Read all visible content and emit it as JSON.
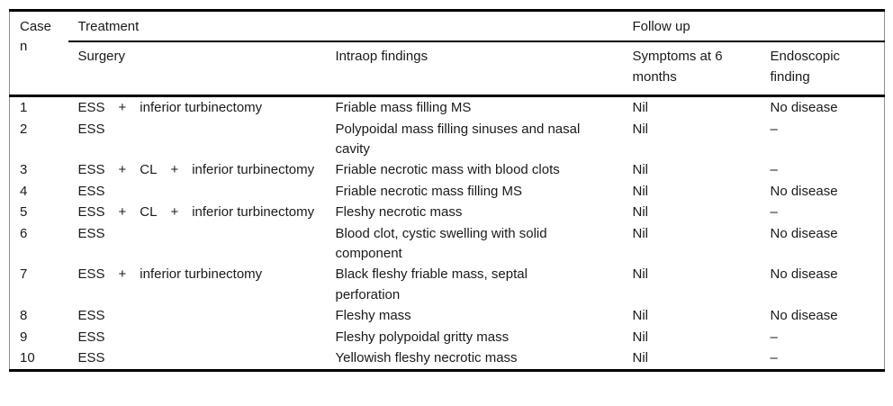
{
  "table": {
    "header": {
      "case_label": "Case n",
      "treatment_label": "Treatment",
      "followup_label": "Follow up",
      "surgery_label": "Surgery",
      "intraop_label": "Intraop findings",
      "symptoms_label": "Symptoms at 6 months",
      "endoscopic_label": "Endoscopic finding"
    },
    "rows": [
      {
        "case": "1",
        "surgery": "ESS  +  inferior turbinectomy",
        "intraop": "Friable mass filling MS",
        "symptoms": "Nil",
        "endoscopic": "No disease"
      },
      {
        "case": "2",
        "surgery": "ESS",
        "intraop": "Polypoidal mass filling sinuses and nasal cavity",
        "symptoms": "Nil",
        "endoscopic": "–"
      },
      {
        "case": "3",
        "surgery": "ESS  +  CL  +  inferior turbinectomy",
        "intraop": "Friable necrotic mass with blood clots",
        "symptoms": "Nil",
        "endoscopic": "–"
      },
      {
        "case": "4",
        "surgery": "ESS",
        "intraop": "Friable necrotic mass filling MS",
        "symptoms": "Nil",
        "endoscopic": "No disease"
      },
      {
        "case": "5",
        "surgery": "ESS  +  CL  +  inferior turbinectomy",
        "intraop": "Fleshy necrotic mass",
        "symptoms": "Nil",
        "endoscopic": "–"
      },
      {
        "case": "6",
        "surgery": "ESS",
        "intraop": "Blood clot, cystic swelling with solid component",
        "symptoms": "Nil",
        "endoscopic": "No disease"
      },
      {
        "case": "7",
        "surgery": "ESS  +  inferior turbinectomy",
        "intraop": "Black fleshy friable mass, septal perforation",
        "symptoms": "Nil",
        "endoscopic": "No disease"
      },
      {
        "case": "8",
        "surgery": "ESS",
        "intraop": "Fleshy mass",
        "symptoms": "Nil",
        "endoscopic": "No disease"
      },
      {
        "case": "9",
        "surgery": "ESS",
        "intraop": "Fleshy polypoidal gritty mass",
        "symptoms": "Nil",
        "endoscopic": "–"
      },
      {
        "case": "10",
        "surgery": "ESS",
        "intraop": "Yellowish fleshy necrotic mass",
        "symptoms": "Nil",
        "endoscopic": "–"
      }
    ]
  }
}
